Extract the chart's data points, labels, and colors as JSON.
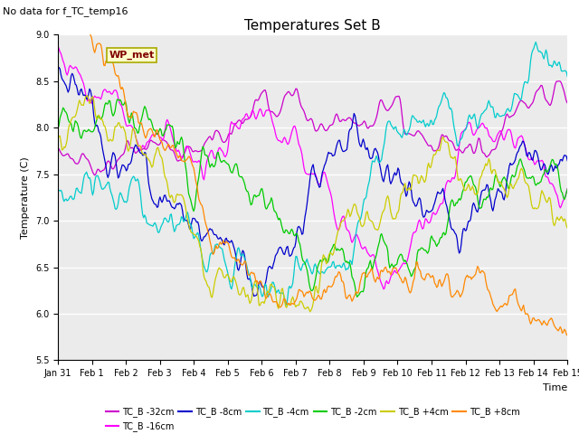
{
  "title": "Temperatures Set B",
  "subtitle": "No data for f_TC_temp16",
  "xlabel": "Time",
  "ylabel": "Temperature (C)",
  "ylim": [
    5.5,
    9.0
  ],
  "yticks": [
    5.5,
    6.0,
    6.5,
    7.0,
    7.5,
    8.0,
    8.5,
    9.0
  ],
  "date_labels": [
    "Jan 31",
    "Feb 1",
    "Feb 2",
    "Feb 3",
    "Feb 4",
    "Feb 5",
    "Feb 6",
    "Feb 7",
    "Feb 8",
    "Feb 9",
    "Feb 10",
    "Feb 11",
    "Feb 12",
    "Feb 13",
    "Feb 14",
    "Feb 15"
  ],
  "wp_met_label": "WP_met",
  "wp_met_color": "#800000",
  "wp_met_bg": "#ffffcc",
  "series": [
    {
      "label": "TC_B -32cm",
      "color": "#cc00cc"
    },
    {
      "label": "TC_B -16cm",
      "color": "#ff00ff"
    },
    {
      "label": "TC_B -8cm",
      "color": "#0000cc"
    },
    {
      "label": "TC_B -4cm",
      "color": "#00cccc"
    },
    {
      "label": "TC_B -2cm",
      "color": "#00cc00"
    },
    {
      "label": "TC_B +4cm",
      "color": "#cccc00"
    },
    {
      "label": "TC_B +8cm",
      "color": "#ff8800"
    }
  ],
  "plot_bg": "#ebebeb",
  "grid_color": "#ffffff"
}
